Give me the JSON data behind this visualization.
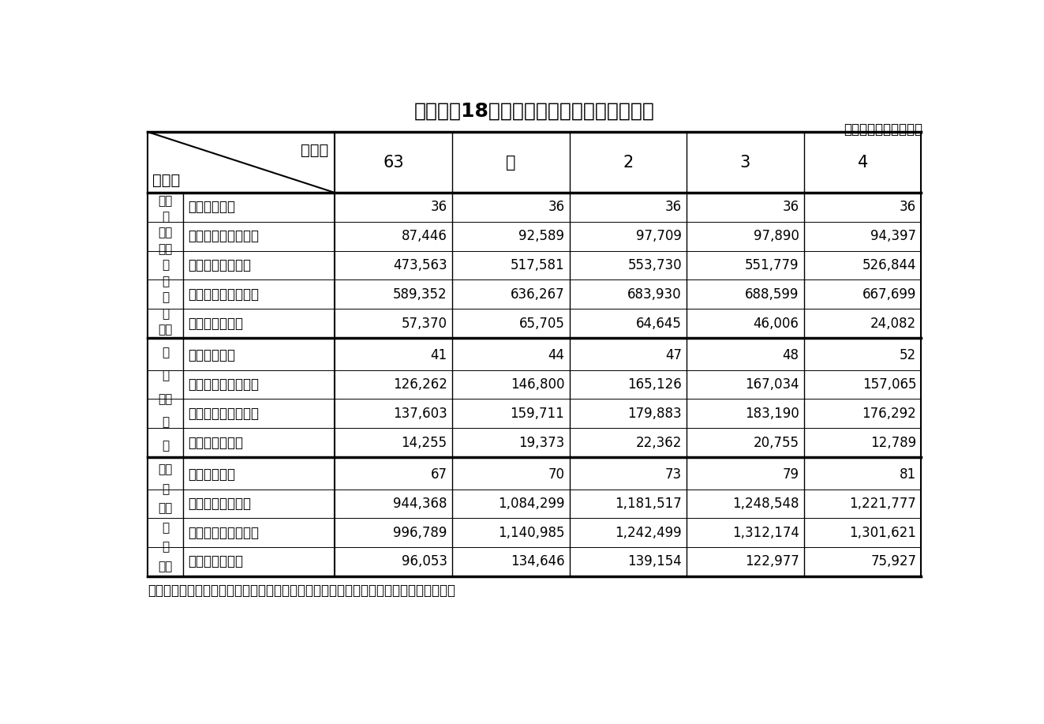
{
  "title": "資料２－18　民間放送の営業収入等の推移",
  "unit_label": "（単位：社・百万円）",
  "note": "（注）　営業収入には、ラジオ収入、テレビジョン収入以外のその他営業収入を含む。",
  "col_label_top": "年　度",
  "col_label_bottom": "区　別",
  "year_headers": [
    "63",
    "元",
    "2",
    "3",
    "4"
  ],
  "sections": [
    {
      "left_label_lines": [
        "ラ兼",
        "ジ",
        "オ・",
        "テ営",
        "レ",
        "ビ",
        "ジ",
        "ョ",
        "ン社"
      ],
      "rows": [
        {
          "name": "社　　　　数",
          "values": [
            "36",
            "36",
            "36",
            "36",
            "36"
          ],
          "align": "right"
        },
        {
          "name": "ラ　ジ　オ　収　入",
          "values": [
            "87,446",
            "92,589",
            "97,709",
            "97,890",
            "94,397"
          ],
          "align": "right"
        },
        {
          "name": "テレビジョン収入",
          "values": [
            "473,563",
            "517,581",
            "553,730",
            "551,779",
            "526,844"
          ],
          "align": "right"
        },
        {
          "name": "営　業　収　入　計",
          "values": [
            "589,352",
            "636,267",
            "683,930",
            "688,599",
            "667,699"
          ],
          "align": "right"
        },
        {
          "name": "営　業　利　益",
          "values": [
            "57,370",
            "65,705",
            "64,645",
            "46,006",
            "24,082"
          ],
          "align": "right"
        }
      ]
    },
    {
      "left_label_lines": [
        "ラ",
        "ジ",
        "オ単",
        "営",
        "社"
      ],
      "rows": [
        {
          "name": "社　　　　数",
          "values": [
            "41",
            "44",
            "47",
            "48",
            "52"
          ],
          "align": "right"
        },
        {
          "name": "ラ　ジ　オ　収　入",
          "values": [
            "126,262",
            "146,800",
            "165,126",
            "167,034",
            "157,065"
          ],
          "align": "right"
        },
        {
          "name": "営　業　収　入　計",
          "values": [
            "137,603",
            "159,711",
            "179,883",
            "183,190",
            "176,292"
          ],
          "align": "right"
        },
        {
          "name": "営　業　利　益",
          "values": [
            "14,255",
            "19,373",
            "22,362",
            "20,755",
            "12,789"
          ],
          "align": "right"
        }
      ]
    },
    {
      "left_label_lines": [
        "テ単",
        "レ",
        "ビ営",
        "ジ",
        "ョ",
        "ン社"
      ],
      "rows": [
        {
          "name": "社　　　　数",
          "values": [
            "67",
            "70",
            "73",
            "79",
            "81"
          ],
          "align": "right"
        },
        {
          "name": "テレビジョン収入",
          "values": [
            "944,368",
            "1,084,299",
            "1,181,517",
            "1,248,548",
            "1,221,777"
          ],
          "align": "right"
        },
        {
          "name": "営　業　収　入　計",
          "values": [
            "996,789",
            "1,140,985",
            "1,242,499",
            "1,312,174",
            "1,301,621"
          ],
          "align": "right"
        },
        {
          "name": "営　業　利　益",
          "values": [
            "96,053",
            "134,646",
            "139,154",
            "122,977",
            "75,927"
          ],
          "align": "right"
        }
      ]
    }
  ],
  "bg_color": "#ffffff",
  "line_color": "#000000",
  "text_color": "#000000"
}
